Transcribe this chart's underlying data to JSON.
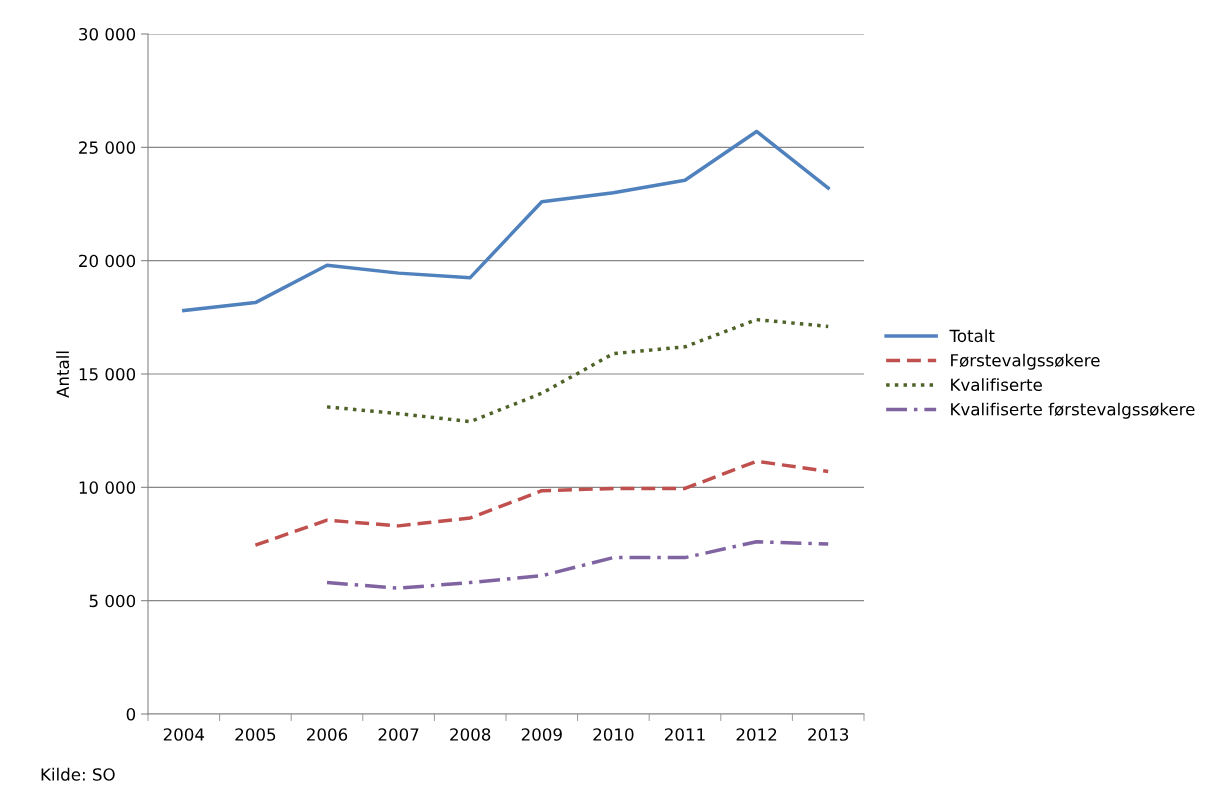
{
  "chart_data": {
    "type": "line",
    "ylabel": "Antall",
    "categories": [
      "2004",
      "2005",
      "2006",
      "2007",
      "2008",
      "2009",
      "2010",
      "2011",
      "2012",
      "2013"
    ],
    "series": [
      {
        "name": "Totalt",
        "color": "#4f81bd",
        "line_style": "solid",
        "values": [
          17800,
          18150,
          19800,
          19450,
          19250,
          22600,
          23000,
          23550,
          25700,
          23200
        ]
      },
      {
        "name": "Førstevalgssøkere",
        "color": "#c0504d",
        "line_style": "dashed",
        "values": [
          null,
          7450,
          8550,
          8300,
          8650,
          9850,
          9950,
          9950,
          11150,
          10700
        ]
      },
      {
        "name": "Kvalifiserte",
        "color": "#4f6228",
        "line_style": "dotted",
        "values": [
          null,
          null,
          13550,
          13250,
          12900,
          14150,
          15900,
          16200,
          17400,
          17100
        ]
      },
      {
        "name": "Kvalifiserte førstevalgssøkere",
        "color": "#8064a2",
        "line_style": "dashdot",
        "values": [
          null,
          null,
          5800,
          5550,
          5800,
          6100,
          6900,
          6900,
          7600,
          7500
        ]
      }
    ],
    "ylim": [
      0,
      30000
    ],
    "yticks": [
      0,
      {
        "value": 5000,
        "label": "5 000"
      },
      {
        "value": 10000,
        "label": "10 000"
      },
      {
        "value": 15000,
        "label": "15 000"
      },
      {
        "value": 20000,
        "label": "20 000"
      },
      {
        "value": 25000,
        "label": "25 000"
      },
      {
        "value": 30000,
        "label": "30 000"
      }
    ],
    "grid": "y",
    "legend": "right",
    "marker": "none",
    "annotations": [
      "Kilde: SO"
    ]
  }
}
